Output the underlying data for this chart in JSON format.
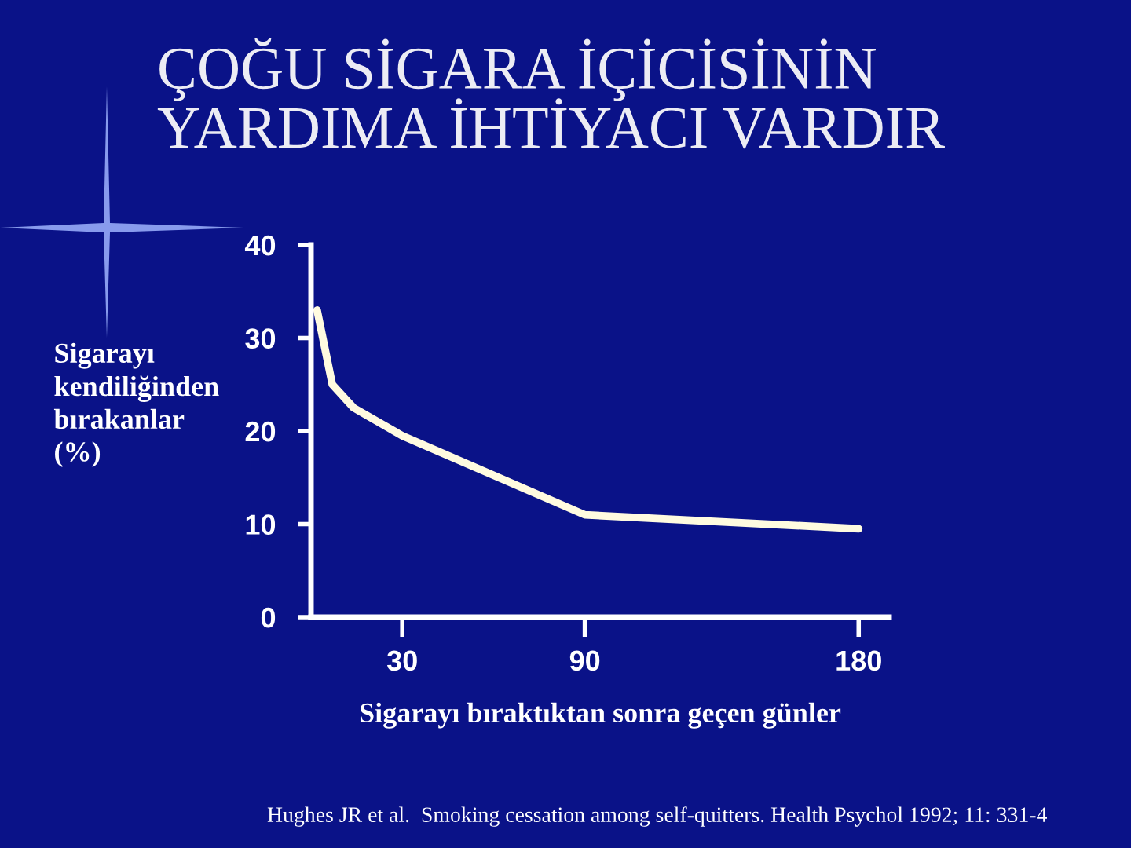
{
  "chart_data": {
    "type": "line",
    "title": "ÇOĞU SİGARA İÇİCİSİNİN\nYARDIMA İHTİYACI VARDIR",
    "ylabel": "Sigarayı\nkendiliğinden\nbırakanlar\n(%)",
    "xlabel": "Sigarayı bıraktıktan sonra geçen günler",
    "annotations": [
      "Hughes JR et al.  Smoking cessation among self-quitters. Health Psychol 1992; 11: 331-4"
    ],
    "x": [
      2,
      7,
      14,
      30,
      90,
      180
    ],
    "values": [
      33,
      25,
      22.5,
      19.5,
      11,
      9.5
    ],
    "color": "#fffbe0",
    "xlim": [
      0,
      190
    ],
    "xticks": [
      30,
      90,
      180
    ],
    "ylim": [
      0,
      40
    ],
    "yticks": [
      0,
      10,
      20,
      30,
      40
    ]
  }
}
